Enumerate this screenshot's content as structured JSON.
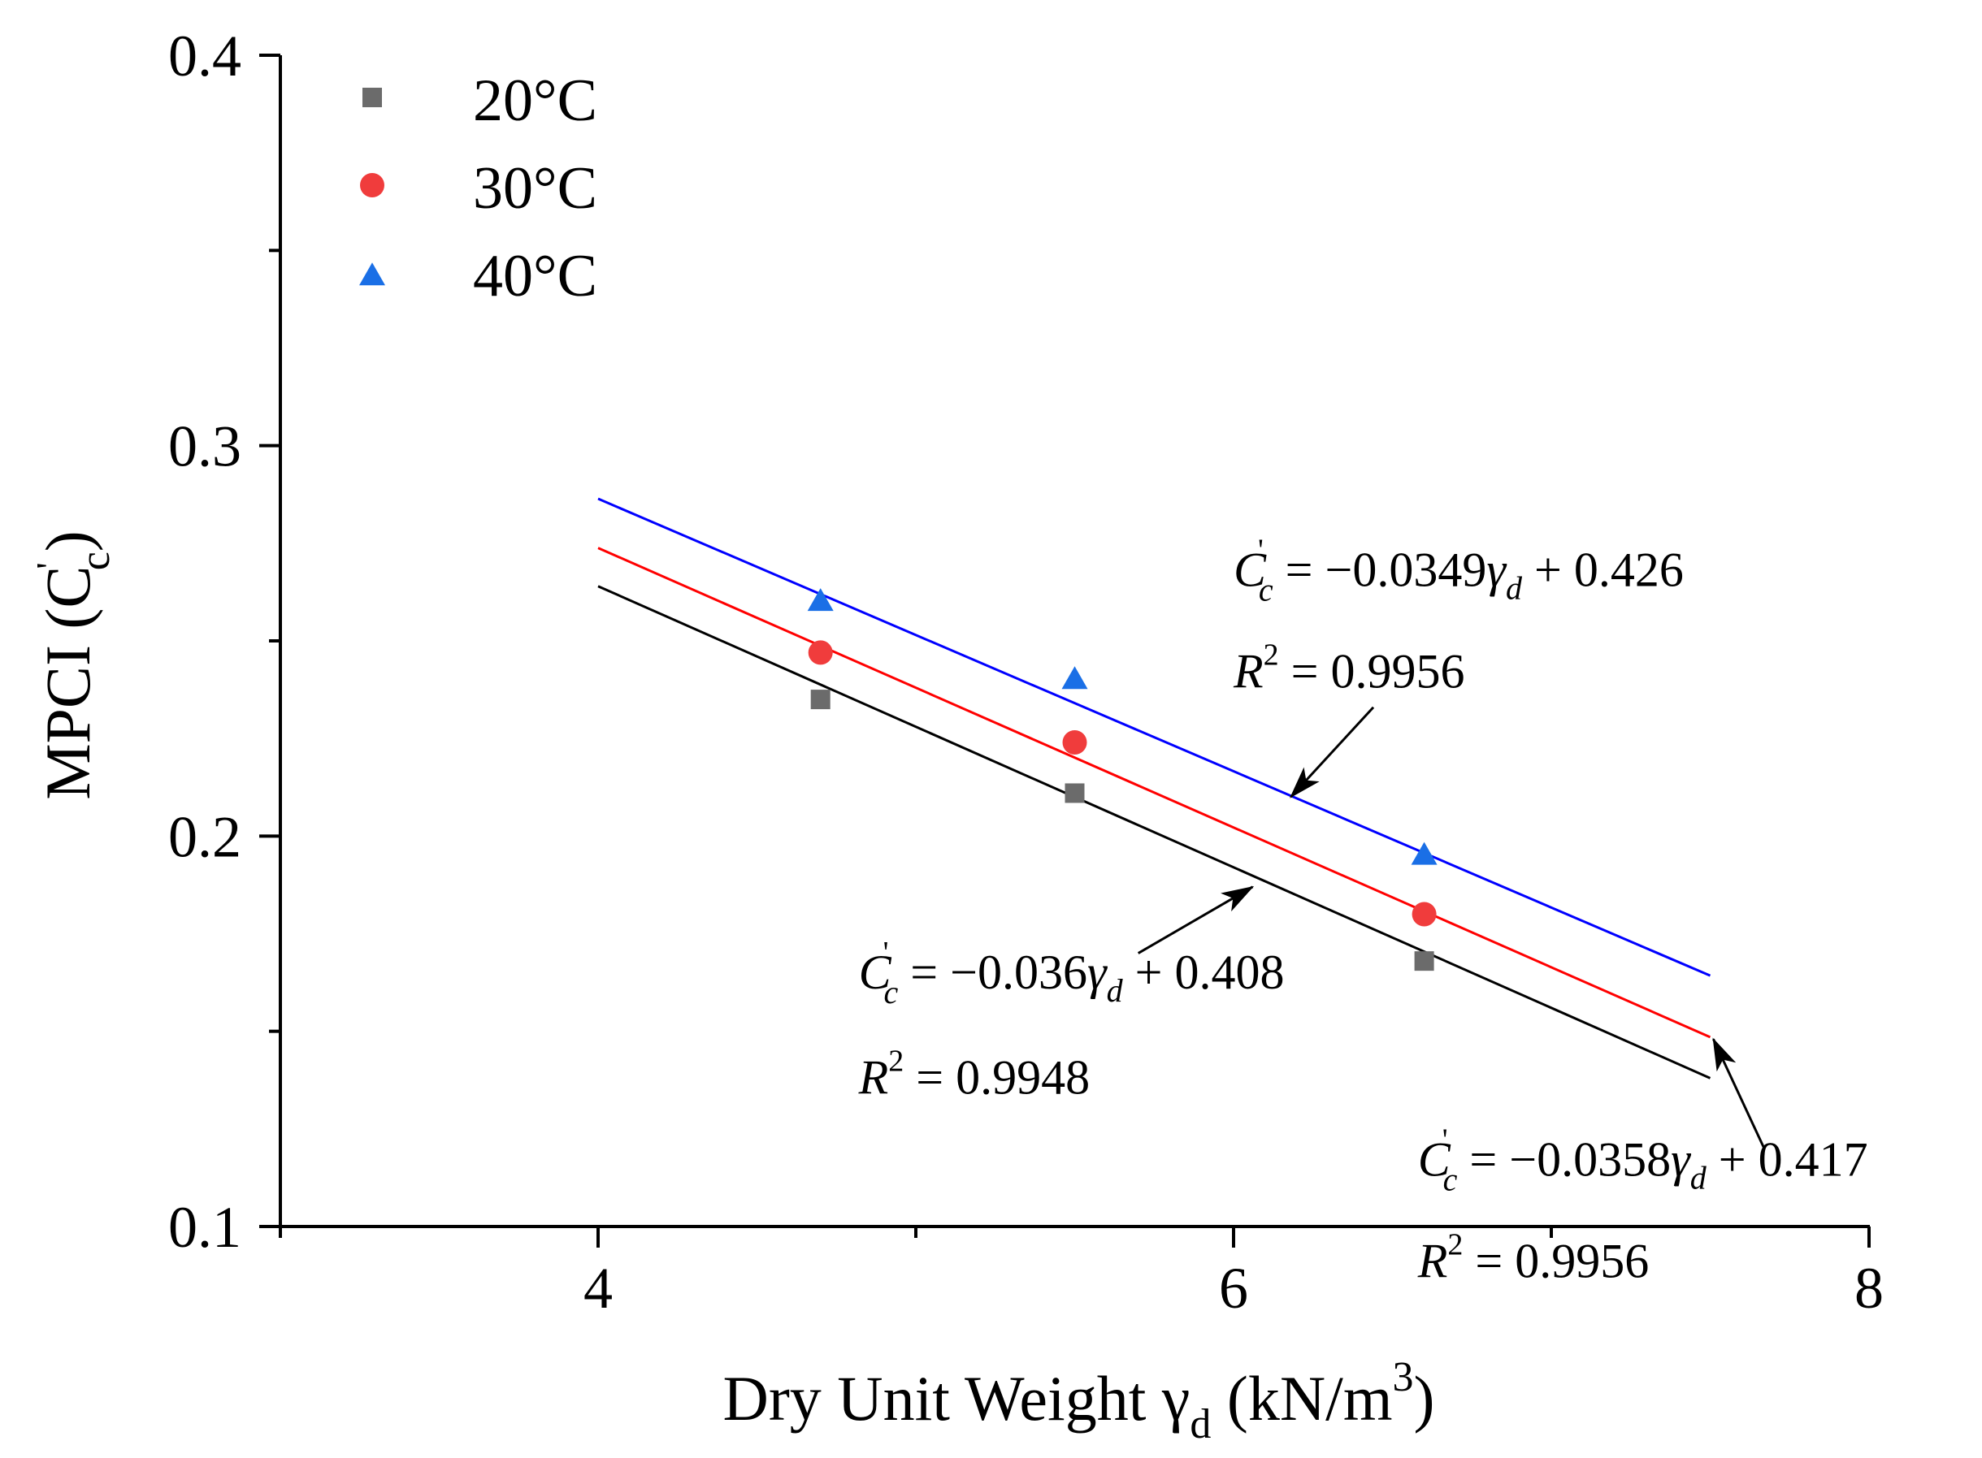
{
  "chart_data": {
    "type": "scatter",
    "title": "",
    "xlabel": "Dry Unit Weight γ",
    "xlabel_sub": "d",
    "xlabel_unit_open": " (kN/m",
    "xlabel_unit_sup": "3",
    "xlabel_unit_close": ")",
    "ylabel": "MPCI (C",
    "ylabel_sup": "'",
    "ylabel_sub": "c",
    "ylabel_close": ")",
    "xlim": [
      3,
      8
    ],
    "ylim": [
      0.1,
      0.4
    ],
    "x_ticks": [
      4,
      6,
      8
    ],
    "x_tick_labels": [
      "4",
      "6",
      "8"
    ],
    "x_minor_ticks": [
      3,
      5,
      7
    ],
    "y_ticks": [
      0.1,
      0.2,
      0.3,
      0.4
    ],
    "y_tick_labels": [
      "0.1",
      "0.2",
      "0.3",
      "0.4"
    ],
    "y_minor_ticks": [
      0.15,
      0.25,
      0.35
    ],
    "grid": false,
    "legend_position": "top-left",
    "series": [
      {
        "name": "20°C",
        "marker": "square",
        "color": "#6b6b6b",
        "line_color": "#000000",
        "x": [
          4.7,
          5.5,
          6.6
        ],
        "y": [
          0.235,
          0.211,
          0.168
        ],
        "fit": {
          "slope": -0.036,
          "intercept": 0.408,
          "x_range": [
            4,
            7.5
          ]
        }
      },
      {
        "name": "30°C",
        "marker": "circle",
        "color": "#f03c3c",
        "line_color": "#ff0000",
        "x": [
          4.7,
          5.5,
          6.6
        ],
        "y": [
          0.247,
          0.224,
          0.18
        ],
        "fit": {
          "slope": -0.0358,
          "intercept": 0.417,
          "x_range": [
            4,
            7.5
          ]
        }
      },
      {
        "name": "40°C",
        "marker": "triangle",
        "color": "#1a6fe6",
        "line_color": "#0000ff",
        "x": [
          4.7,
          5.5,
          6.6
        ],
        "y": [
          0.26,
          0.24,
          0.195
        ],
        "fit": {
          "slope": -0.0349,
          "intercept": 0.426,
          "x_range": [
            4,
            7.5
          ]
        }
      }
    ],
    "annotations": [
      {
        "series": "40°C",
        "eq_slope": "−0.0349",
        "eq_intercept": "+ 0.426",
        "r2": "= 0.9956",
        "text_at": [
          6.0,
          0.264
        ],
        "r2_at": [
          6.0,
          0.238
        ],
        "arrow_from": [
          6.44,
          0.233
        ],
        "arrow_to": [
          6.18,
          0.21
        ]
      },
      {
        "series": "20°C",
        "eq_slope": "−0.036",
        "eq_intercept": "+ 0.408",
        "r2": "= 0.9948",
        "text_at": [
          4.82,
          0.161
        ],
        "r2_at": [
          4.82,
          0.134
        ],
        "arrow_from": [
          5.7,
          0.17
        ],
        "arrow_to": [
          6.06,
          0.187
        ]
      },
      {
        "series": "30°C",
        "eq_slope": "−0.0358",
        "eq_intercept": "+ 0.417",
        "r2": "= 0.9956",
        "text_at": [
          6.58,
          0.113
        ],
        "r2_at": [
          6.58,
          0.087
        ],
        "arrow_from": [
          7.67,
          0.12
        ],
        "arrow_to": [
          7.51,
          0.148
        ]
      }
    ],
    "eq_lhs_symbol": "C",
    "eq_lhs_sup": "'",
    "eq_lhs_sub": "c",
    "eq_var": "γ",
    "eq_var_sub": "d",
    "r2_symbol": "R",
    "r2_sup": "2"
  }
}
